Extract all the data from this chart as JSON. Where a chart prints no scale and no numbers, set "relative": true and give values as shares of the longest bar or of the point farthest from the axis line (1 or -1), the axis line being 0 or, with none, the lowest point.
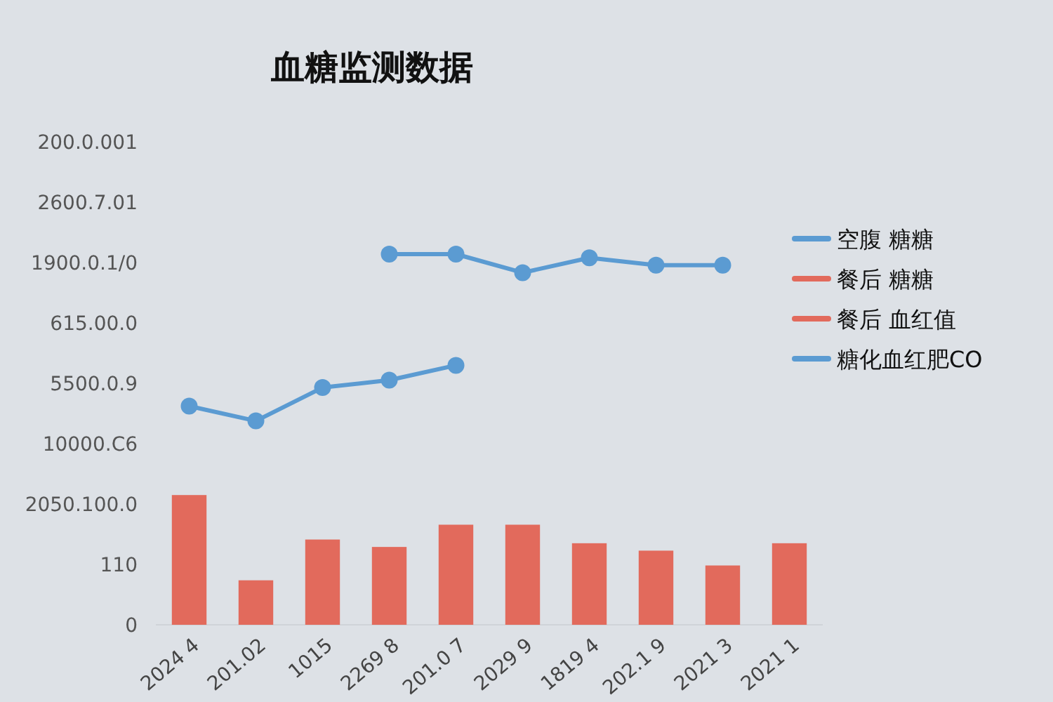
{
  "chart_data": {
    "type": "bar",
    "title": "血糖监测数据",
    "categories": [
      "2024 4",
      "201.02",
      "1015",
      "2269 8",
      "201.0 7",
      "2029 9",
      "1819 4",
      "202.1 9",
      "2021 3",
      "2021 1"
    ],
    "series": [
      {
        "name": "空腹 糖糖",
        "type": "line",
        "color": "#5b9bd2",
        "values": [
          null,
          null,
          null,
          1.0,
          1.0,
          0.95,
          0.99,
          0.97,
          0.97,
          null
        ]
      },
      {
        "name": "餐后 糖糖",
        "color": "#e26a5c",
        "values": [
          0.35,
          0.12,
          0.23,
          0.21,
          0.27,
          0.27,
          0.22,
          0.2,
          0.16,
          0.22
        ]
      },
      {
        "name": "餐后 血红值",
        "color": "#e26a5c",
        "values": [
          null,
          null,
          null,
          null,
          null,
          null,
          null,
          null,
          null,
          null
        ]
      },
      {
        "name": "糖化血红肥CO",
        "type": "line",
        "color": "#5b9bd2",
        "values": [
          0.59,
          0.55,
          0.64,
          0.66,
          0.7,
          null,
          null,
          null,
          null,
          null
        ]
      }
    ],
    "relative": true,
    "annotations": [
      "200.0.001",
      "2600.7.01",
      "1900.0.1/0",
      "615.00.0",
      "5500.0.9",
      "10000.C6",
      "2050.100.0",
      "110",
      "0"
    ],
    "marker": "circle",
    "legend": "right",
    "grid": false
  }
}
